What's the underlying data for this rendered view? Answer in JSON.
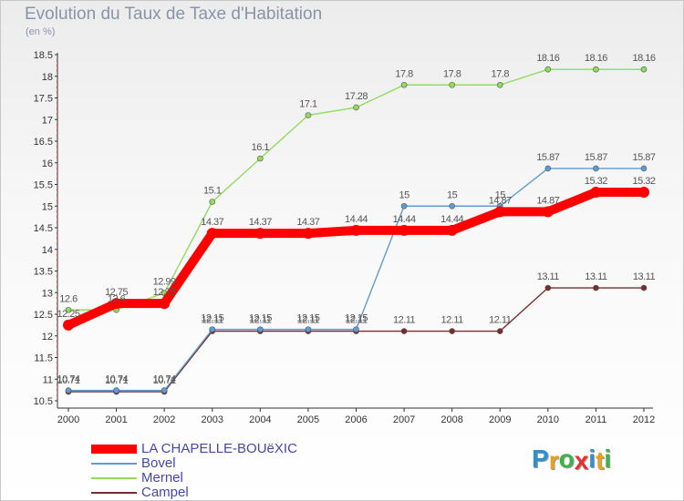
{
  "title": "Evolution du Taux de Taxe d'Habitation",
  "unit_label": "(en %)",
  "logo": {
    "letters": [
      "P",
      "r",
      "o",
      "x",
      "i",
      "t",
      "i"
    ],
    "colors": [
      "#2e8fd6",
      "#e8a020",
      "#3cb44a",
      "#e83030",
      "#2e8fd6",
      "#e8a020",
      "#3cb44a"
    ]
  },
  "chart_data": {
    "type": "line",
    "title": "Evolution du Taux de Taxe d'Habitation",
    "ylabel": "(en %)",
    "xlabel": "",
    "ylim": [
      10.5,
      18.5
    ],
    "yticks": [
      "10.5",
      "11",
      "11.5",
      "12",
      "12.5",
      "13",
      "13.5",
      "14",
      "14.5",
      "15",
      "15.5",
      "16",
      "16.5",
      "17",
      "17.5",
      "18",
      "18.5"
    ],
    "categories": [
      "2000",
      "2001",
      "2002",
      "2003",
      "2004",
      "2005",
      "2006",
      "2007",
      "2008",
      "2009",
      "2010",
      "2011",
      "2012"
    ],
    "series": [
      {
        "name": "LA CHAPELLE-BOUëXIC",
        "color": "#ff0000",
        "values": [
          12.25,
          12.75,
          12.75,
          14.37,
          14.37,
          14.37,
          14.44,
          14.44,
          14.44,
          14.87,
          14.87,
          15.32,
          15.32
        ],
        "labels": [
          "12.25",
          "12.75",
          "12.75",
          "14.37",
          "14.37",
          "14.37",
          "14.44",
          "14.44",
          "14.44",
          "14.87",
          "14.87",
          "15.32",
          "15.32"
        ]
      },
      {
        "name": "Bovel",
        "color": "#5e9bd2",
        "values": [
          10.74,
          10.74,
          10.74,
          12.15,
          12.15,
          12.15,
          12.15,
          15,
          15,
          15,
          15.87,
          15.87,
          15.87
        ],
        "labels": [
          "10.74",
          "10.74",
          "10.74",
          "12.15",
          "12.15",
          "12.15",
          "12.15",
          "15",
          "15",
          "15",
          "15.87",
          "15.87",
          "15.87"
        ]
      },
      {
        "name": "Mernel",
        "color": "#8fdc5e",
        "values": [
          12.6,
          12.6,
          12.99,
          15.1,
          16.1,
          17.1,
          17.28,
          17.8,
          17.8,
          17.8,
          18.16,
          18.16,
          18.16
        ],
        "labels": [
          "12.6",
          "12.6",
          "12.99",
          "15.1",
          "16.1",
          "17.1",
          "17.28",
          "17.8",
          "17.8",
          "17.8",
          "18.16",
          "18.16",
          "18.16"
        ]
      },
      {
        "name": "Campel",
        "color": "#7a2c2c",
        "values": [
          10.71,
          10.71,
          10.71,
          12.11,
          12.11,
          12.11,
          12.11,
          12.11,
          12.11,
          12.11,
          13.11,
          13.11,
          13.11
        ],
        "labels": [
          "10.71",
          "10.71",
          "10.71",
          "12.11",
          "12.11",
          "12.11",
          "12.11",
          "12.11",
          "12.11",
          "12.11",
          "13.11",
          "13.11",
          "13.11"
        ]
      }
    ],
    "draw_order": [
      3,
      1,
      2,
      0
    ],
    "grid": false,
    "legend_position": "bottom-left"
  }
}
